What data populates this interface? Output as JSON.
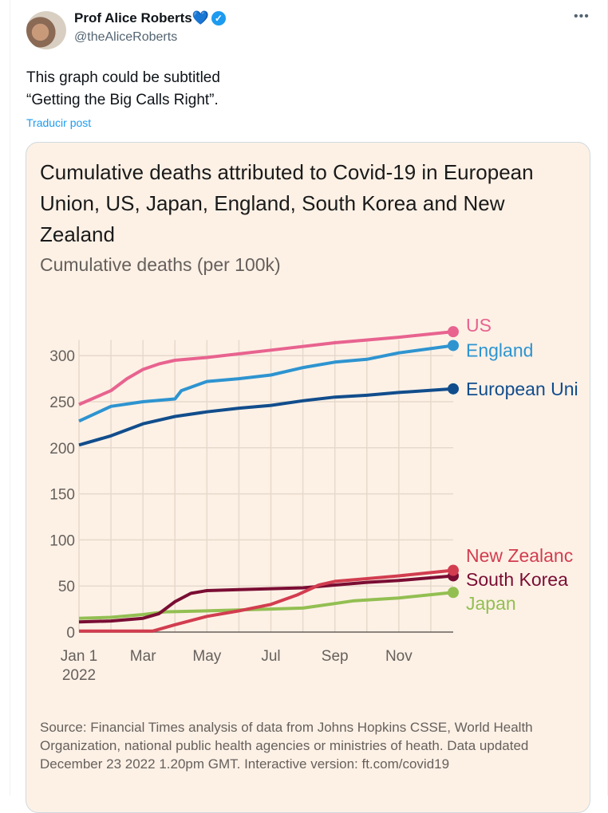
{
  "post": {
    "author": "Prof Alice Roberts",
    "heart": "💙",
    "handle": "@theAliceRoberts",
    "more": "•••",
    "text_lines": [
      "This graph could be subtitled",
      "“Getting the Big Calls Right”."
    ],
    "translate": "Traducir post"
  },
  "chart_data": {
    "type": "line",
    "title": "Cumulative deaths attributed to Covid-19 in European Union, US, Japan, England, South Korea and New Zealand",
    "ylabel": "Cumulative deaths (per 100k)",
    "xlabel": "",
    "x_unit": "months since Jan 1 2022",
    "xlim": [
      0,
      11.7
    ],
    "ylim": [
      0,
      317
    ],
    "yticks": [
      0,
      50,
      100,
      150,
      200,
      250,
      300
    ],
    "xticks": [
      {
        "x": 0,
        "label": "Jan 1",
        "label2": "2022"
      },
      {
        "x": 2,
        "label": "Mar"
      },
      {
        "x": 4,
        "label": "May"
      },
      {
        "x": 6,
        "label": "Jul"
      },
      {
        "x": 8,
        "label": "Sep"
      },
      {
        "x": 10,
        "label": "Nov"
      }
    ],
    "series": [
      {
        "name": "US",
        "color": "#e8638f",
        "points": [
          [
            0,
            247
          ],
          [
            1,
            262
          ],
          [
            1.5,
            275
          ],
          [
            2,
            285
          ],
          [
            2.5,
            291
          ],
          [
            3,
            295
          ],
          [
            4,
            298
          ],
          [
            6,
            306
          ],
          [
            8,
            314
          ],
          [
            10,
            320
          ],
          [
            11.7,
            326
          ]
        ]
      },
      {
        "name": "England",
        "color": "#2e94d0",
        "points": [
          [
            0,
            229
          ],
          [
            1,
            245
          ],
          [
            2,
            250
          ],
          [
            3,
            253
          ],
          [
            3.2,
            262
          ],
          [
            4,
            272
          ],
          [
            5,
            275
          ],
          [
            6,
            279
          ],
          [
            7,
            287
          ],
          [
            8,
            293
          ],
          [
            9,
            296
          ],
          [
            10,
            303
          ],
          [
            11.7,
            311
          ]
        ]
      },
      {
        "name": "European Union",
        "color": "#114d8c",
        "points": [
          [
            0,
            203
          ],
          [
            1,
            213
          ],
          [
            2,
            226
          ],
          [
            3,
            234
          ],
          [
            4,
            239
          ],
          [
            5,
            243
          ],
          [
            6,
            246
          ],
          [
            7,
            251
          ],
          [
            8,
            255
          ],
          [
            9,
            257
          ],
          [
            10,
            260
          ],
          [
            11.7,
            264
          ]
        ]
      },
      {
        "name": "Japan",
        "color": "#93bf52",
        "points": [
          [
            0,
            15
          ],
          [
            1,
            16
          ],
          [
            2,
            19
          ],
          [
            2.7,
            22
          ],
          [
            4,
            23
          ],
          [
            5,
            24
          ],
          [
            6,
            25
          ],
          [
            7,
            26
          ],
          [
            8,
            31
          ],
          [
            8.6,
            34
          ],
          [
            10,
            37
          ],
          [
            11.7,
            43
          ]
        ]
      },
      {
        "name": "South Korea",
        "color": "#7a0d33",
        "points": [
          [
            0,
            11
          ],
          [
            1,
            12
          ],
          [
            2,
            15
          ],
          [
            2.5,
            20
          ],
          [
            3,
            33
          ],
          [
            3.5,
            42
          ],
          [
            4,
            45
          ],
          [
            5,
            46
          ],
          [
            7,
            48
          ],
          [
            8,
            51
          ],
          [
            9,
            54
          ],
          [
            10,
            56
          ],
          [
            11.7,
            61
          ]
        ]
      },
      {
        "name": "New Zealand",
        "color": "#d23d4f",
        "points": [
          [
            0,
            1
          ],
          [
            2.3,
            1
          ],
          [
            3,
            8
          ],
          [
            4,
            17
          ],
          [
            5,
            23
          ],
          [
            6,
            30
          ],
          [
            6.8,
            40
          ],
          [
            7.5,
            51
          ],
          [
            8,
            55
          ],
          [
            9,
            58
          ],
          [
            10,
            61
          ],
          [
            11.7,
            67
          ]
        ]
      }
    ],
    "labels": [
      {
        "series": "US",
        "text": "US",
        "label_value": 333
      },
      {
        "series": "England",
        "text": "England",
        "label_value": 306
      },
      {
        "series": "European Union",
        "text": "European Uni",
        "label_value": 264
      },
      {
        "series": "New Zealand",
        "text": "New Zealanc",
        "label_value": 83
      },
      {
        "series": "South Korea",
        "text": "South Korea",
        "label_value": 57
      },
      {
        "series": "Japan",
        "text": "Japan",
        "label_value": 31
      }
    ],
    "source": "Source: Financial Times analysis of data from Johns Hopkins CSSE, World Health Organization, national public health agencies or ministries of heath. Data updated December 23 2022 1.20pm GMT. Interactive version: ft.com/covid19"
  }
}
